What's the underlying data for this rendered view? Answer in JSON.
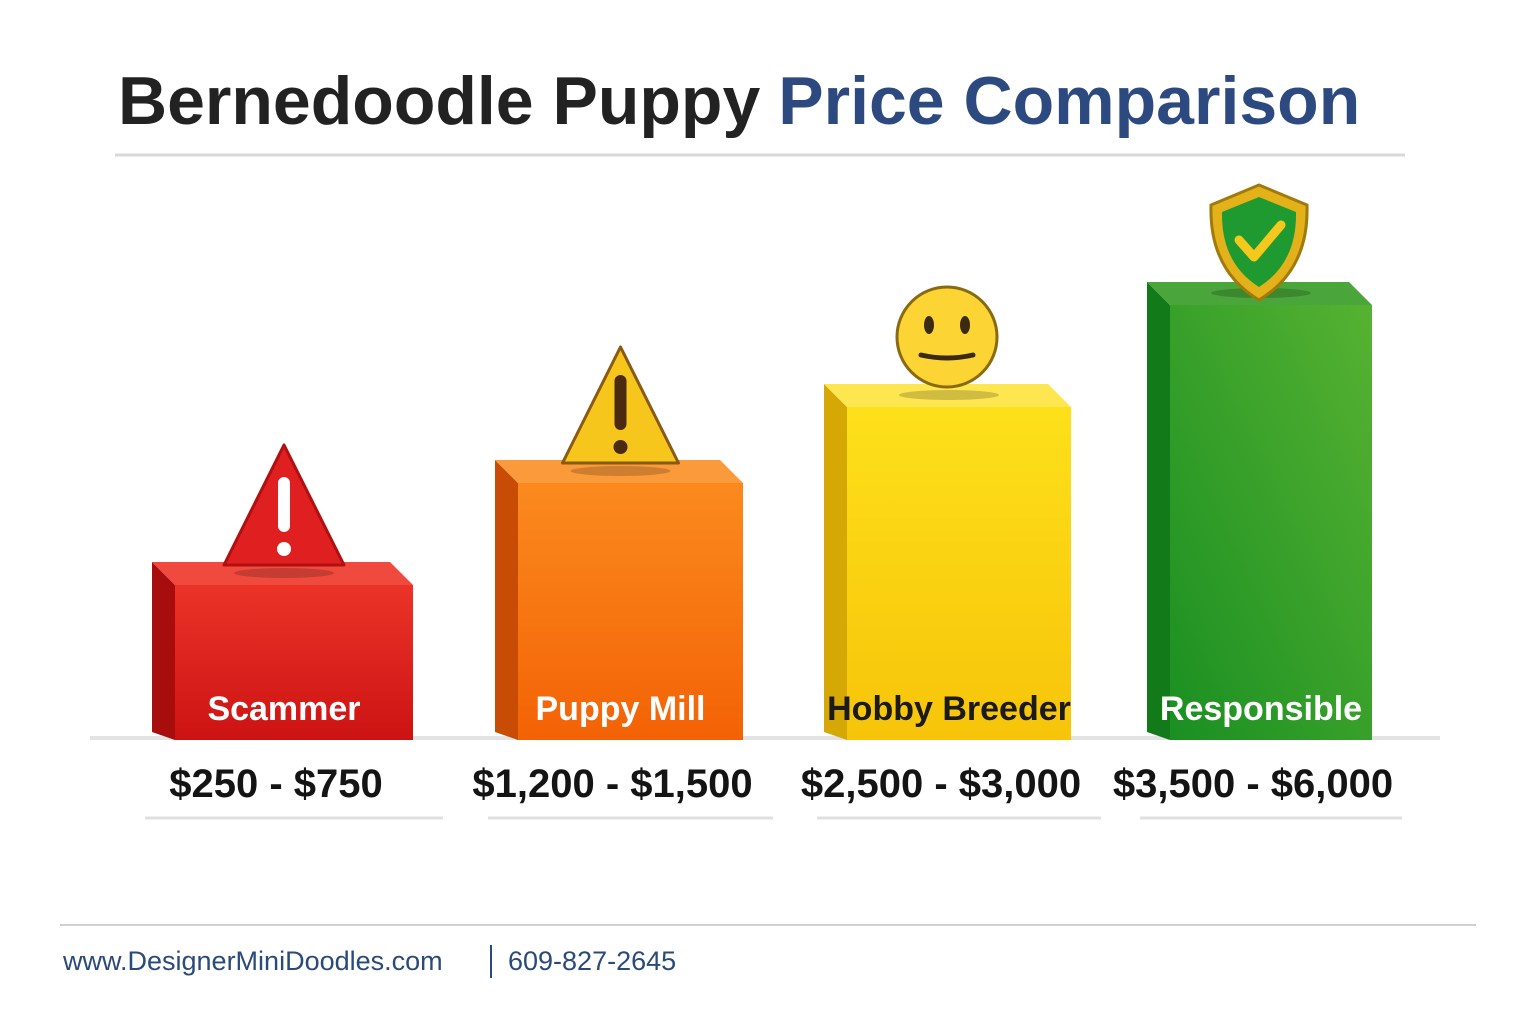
{
  "title": {
    "part1": "Bernedoodle Puppy",
    "part2": "Price Comparison"
  },
  "bars": [
    {
      "label": "Scammer",
      "price": "$250 - $750"
    },
    {
      "label": "Puppy Mill",
      "price": "$1,200 - $1,500"
    },
    {
      "label": "Hobby Breeder",
      "price": "$2,500 - $3,000"
    },
    {
      "label": "Responsible",
      "price": "$3,500 - $6,000"
    }
  ],
  "footer": {
    "website": "www.DesignerMiniDoodles.com",
    "phone": "609-827-2645"
  }
}
